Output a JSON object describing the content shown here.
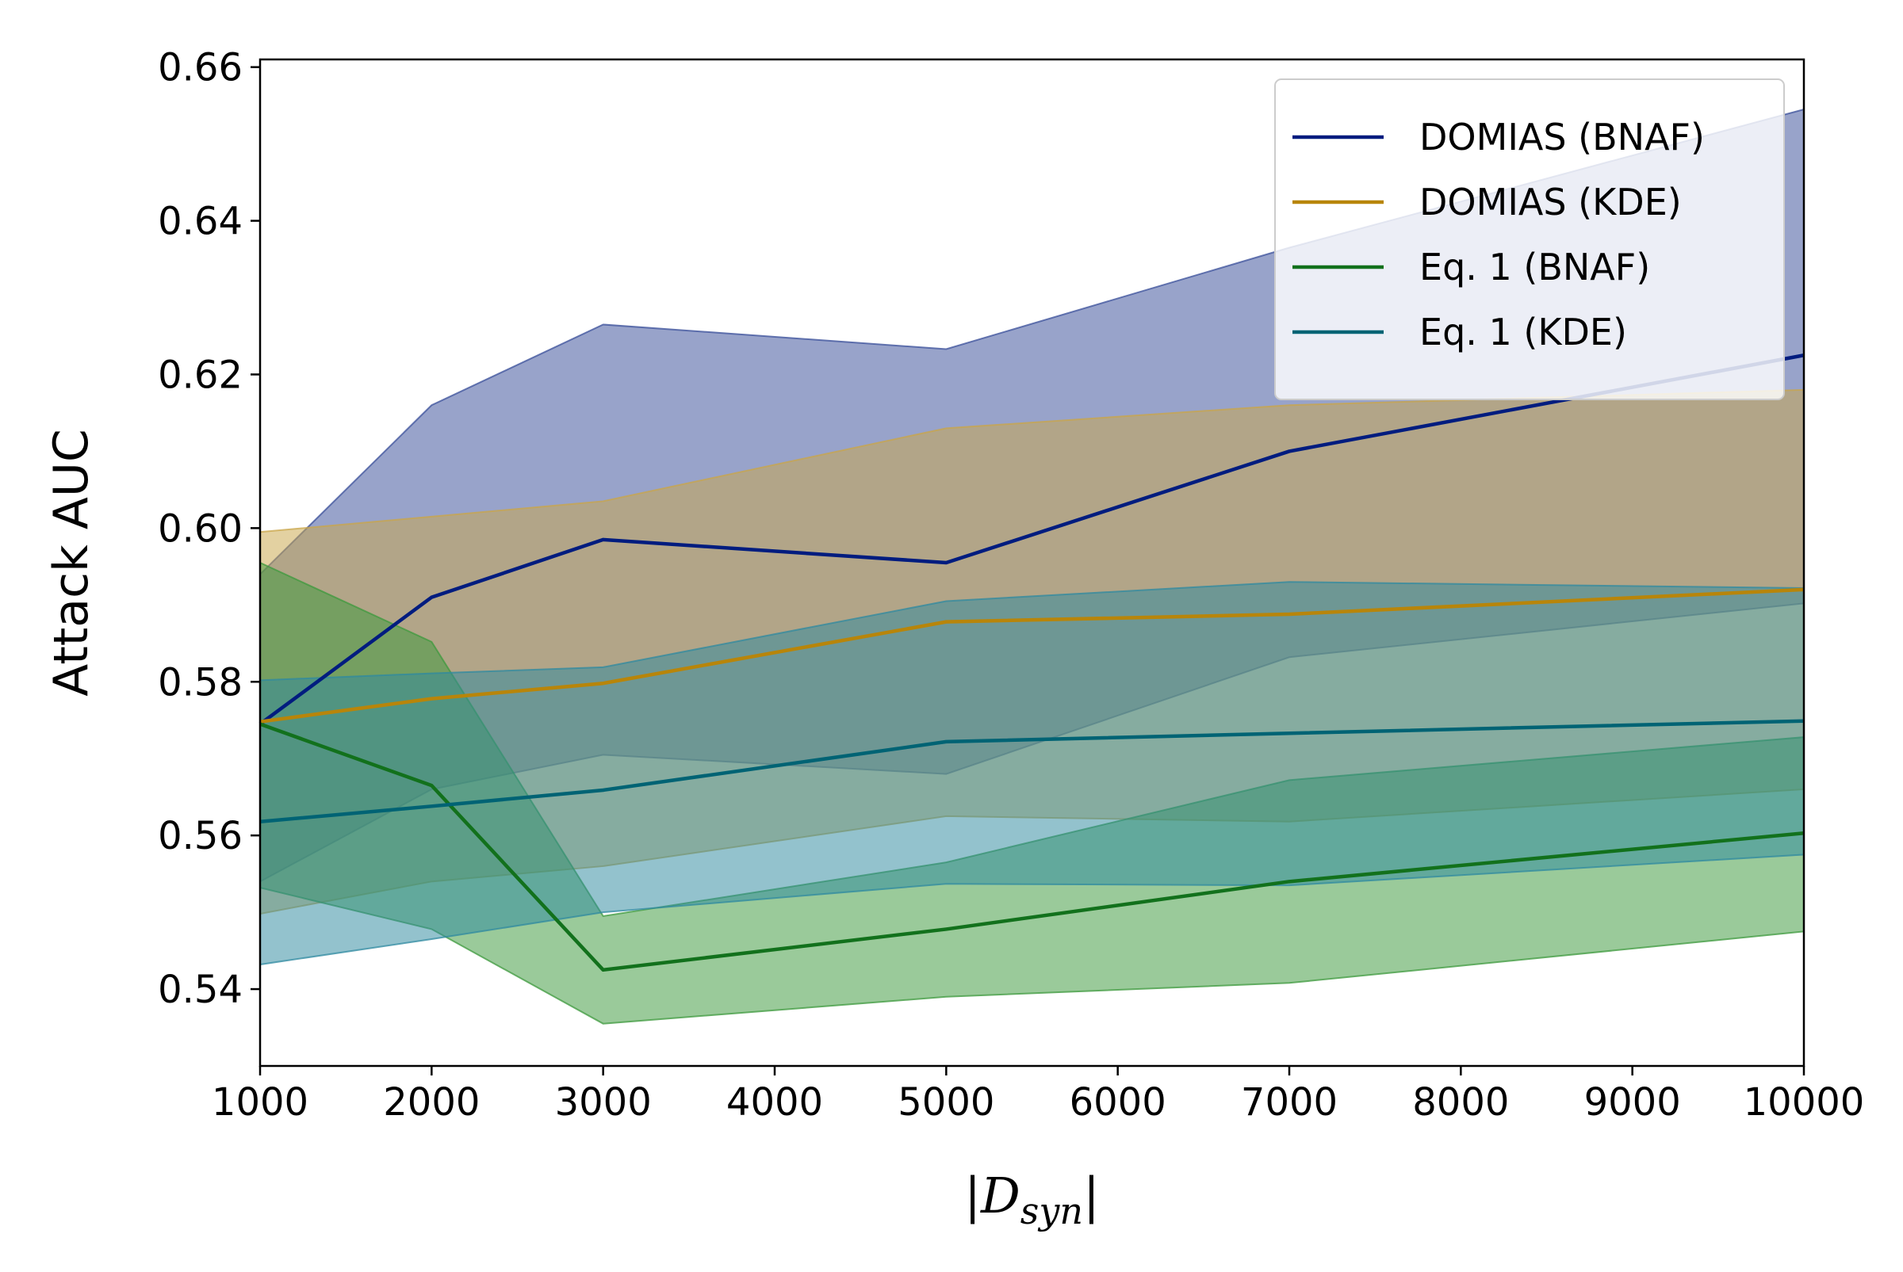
{
  "chart_data": {
    "type": "line",
    "title": "",
    "xlabel": "|D",
    "xlabel_sub": "syn",
    "xlabel_end": "|",
    "ylabel": "Attack AUC",
    "x": [
      1000,
      2000,
      3000,
      5000,
      7000,
      10000
    ],
    "xlim": [
      1000,
      10000
    ],
    "ylim": [
      0.53,
      0.661
    ],
    "xticks": [
      1000,
      2000,
      3000,
      4000,
      5000,
      6000,
      7000,
      8000,
      9000,
      10000
    ],
    "xtick_labels": [
      "1000",
      "2000",
      "3000",
      "4000",
      "5000",
      "6000",
      "7000",
      "8000",
      "9000",
      "10000"
    ],
    "yticks": [
      0.54,
      0.56,
      0.58,
      0.6,
      0.62,
      0.64,
      0.66
    ],
    "ytick_labels": [
      "0.54",
      "0.56",
      "0.58",
      "0.60",
      "0.62",
      "0.64",
      "0.66"
    ],
    "grid": false,
    "legend_position": "top-right",
    "series": [
      {
        "name": "DOMIAS (BNAF)",
        "color": "#001c7f",
        "fill_color": "#3a4f9a",
        "values": [
          0.5745,
          0.591,
          0.5985,
          0.5955,
          0.61,
          0.6225
        ],
        "upper": [
          0.594,
          0.616,
          0.6265,
          0.6233,
          0.6365,
          0.6545
        ],
        "lower": [
          0.554,
          0.566,
          0.5705,
          0.568,
          0.5832,
          0.5902
        ]
      },
      {
        "name": "DOMIAS (KDE)",
        "color": "#b8850a",
        "fill_color": "#c9a64a",
        "values": [
          0.5748,
          0.5778,
          0.5798,
          0.5878,
          0.5888,
          0.592
        ],
        "upper": [
          0.5995,
          0.6015,
          0.6035,
          0.613,
          0.616,
          0.618
        ],
        "lower": [
          0.5498,
          0.554,
          0.556,
          0.5625,
          0.5618,
          0.566
        ]
      },
      {
        "name": "Eq. 1 (BNAF)",
        "color": "#12711c",
        "fill_color": "#3d9a3d",
        "values": [
          0.5745,
          0.5665,
          0.5425,
          0.5478,
          0.554,
          0.5603
        ],
        "upper": [
          0.5955,
          0.5852,
          0.5495,
          0.5565,
          0.5672,
          0.5728
        ],
        "lower": [
          0.5532,
          0.5478,
          0.5355,
          0.539,
          0.5408,
          0.5475
        ]
      },
      {
        "name": "Eq. 1 (KDE)",
        "color": "#006374",
        "fill_color": "#2f8aa0",
        "values": [
          0.5618,
          0.5638,
          0.5659,
          0.5722,
          0.5733,
          0.5749
        ],
        "upper": [
          0.5802,
          0.5811,
          0.5819,
          0.5905,
          0.593,
          0.5922
        ],
        "lower": [
          0.5432,
          0.5465,
          0.55,
          0.5537,
          0.5535,
          0.5575
        ]
      }
    ]
  }
}
